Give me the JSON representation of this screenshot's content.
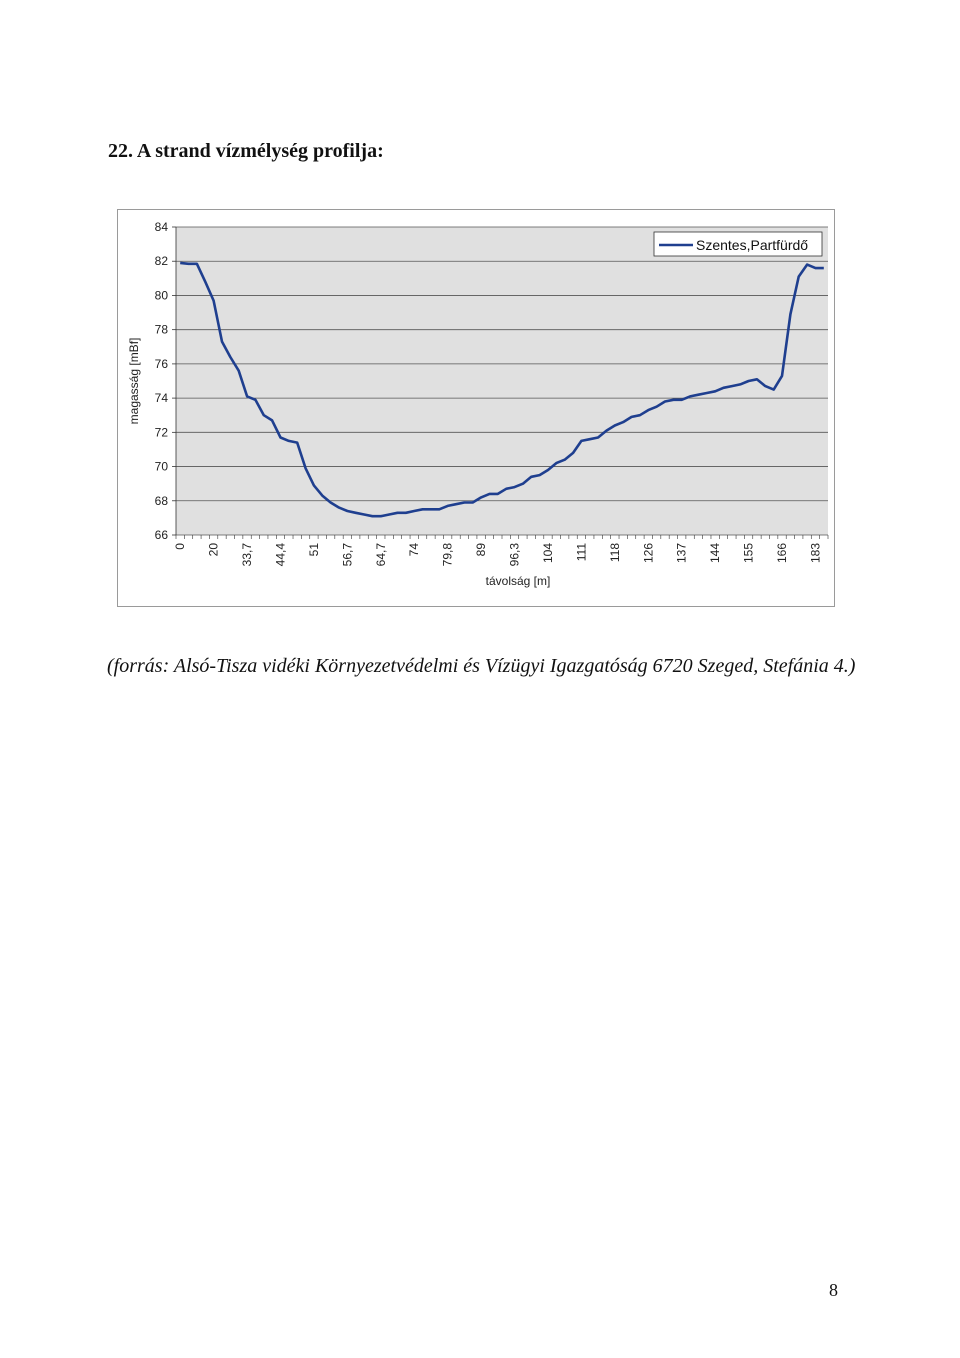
{
  "page": {
    "heading": "22. A strand vízmélység profilja:",
    "source": "(forrás: Alsó-Tisza vidéki Környezetvédelmi és Vízügyi Igazgatóság 6720 Szeged, Stefánia 4.)",
    "page_number": "8"
  },
  "chart_data": {
    "type": "line",
    "title": "",
    "xlabel": "távolság [m]",
    "ylabel": "magasság [mBf]",
    "ylim": [
      66,
      84
    ],
    "yticks": [
      "66",
      "68",
      "70",
      "72",
      "74",
      "76",
      "78",
      "80",
      "82",
      "84"
    ],
    "xtick_labels": [
      "0",
      "20",
      "33,7",
      "44,4",
      "51",
      "56,7",
      "64,7",
      "74",
      "79,8",
      "89",
      "96,3",
      "104",
      "111",
      "118",
      "126",
      "137",
      "144",
      "155",
      "166",
      "183"
    ],
    "grid": "horizontal",
    "legend_position": "top-right",
    "line_color": "#1f3f8f",
    "plot_background": "#e0e0e0",
    "series": [
      {
        "name": "Szentes,Partfürdő",
        "values": [
          81.9,
          81.85,
          81.85,
          80.8,
          79.7,
          77.3,
          76.4,
          75.6,
          74.1,
          73.9,
          73,
          72.7,
          71.7,
          71.5,
          71.4,
          69.9,
          68.9,
          68.3,
          67.9,
          67.6,
          67.4,
          67.3,
          67.2,
          67.1,
          67.1,
          67.2,
          67.3,
          67.3,
          67.4,
          67.5,
          67.5,
          67.5,
          67.7,
          67.8,
          67.9,
          67.9,
          68.2,
          68.4,
          68.4,
          68.7,
          68.8,
          69,
          69.4,
          69.5,
          69.8,
          70.2,
          70.4,
          70.8,
          71.5,
          71.6,
          71.7,
          72.1,
          72.4,
          72.6,
          72.9,
          73,
          73.3,
          73.5,
          73.8,
          73.9,
          73.9,
          74.1,
          74.2,
          74.3,
          74.4,
          74.6,
          74.7,
          74.8,
          75,
          75.1,
          74.7,
          74.5,
          75.3,
          78.9,
          81.1,
          81.8,
          81.6,
          81.6
        ]
      }
    ]
  }
}
